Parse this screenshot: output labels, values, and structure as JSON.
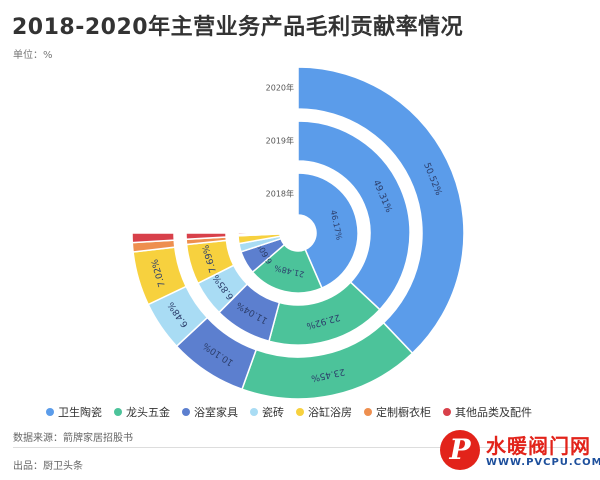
{
  "header": {
    "title": "2018-2020年主营业务产品毛利贡献率情况",
    "unit": "单位：%"
  },
  "chart_data": {
    "type": "pie",
    "subtype": "stacked-ring-three-quarter",
    "rings": [
      {
        "year": "2018年",
        "values": [
          46.17,
          21.48,
          6.6,
          2.4,
          2.2,
          0.3,
          0.5
        ],
        "labels": [
          "46.17%",
          "21.48%",
          "6.60%",
          "",
          "",
          "",
          ""
        ]
      },
      {
        "year": "2019年",
        "values": [
          49.31,
          22.92,
          11.04,
          6.85,
          7.69,
          1.0,
          1.19
        ],
        "labels": [
          "49.31%",
          "22.92%",
          "11.04%",
          "6.85%",
          "7.69%",
          "",
          ""
        ]
      },
      {
        "year": "2020年",
        "values": [
          50.52,
          23.45,
          10.1,
          6.48,
          7.02,
          1.2,
          1.23
        ],
        "labels": [
          "50.52%",
          "23.45%",
          "10.10%",
          "6.48%",
          "7.02%",
          "",
          ""
        ]
      }
    ],
    "categories": [
      "卫生陶瓷",
      "龙头五金",
      "浴室家具",
      "瓷砖",
      "浴缸浴房",
      "定制橱衣柜",
      "其他品类及配件"
    ],
    "colors": [
      "#5b9cea",
      "#4cc39a",
      "#5c7fcf",
      "#a9dcf4",
      "#f7d13e",
      "#ee8f4f",
      "#d8404a"
    ],
    "legend_position": "bottom"
  },
  "footer": {
    "source": "数据来源：箭牌家居招股书",
    "provider": "出品：厨卫头条"
  },
  "logo": {
    "mark": "P",
    "cn": "水暖阀门网",
    "en": "WWW.PVCPU.COM"
  }
}
